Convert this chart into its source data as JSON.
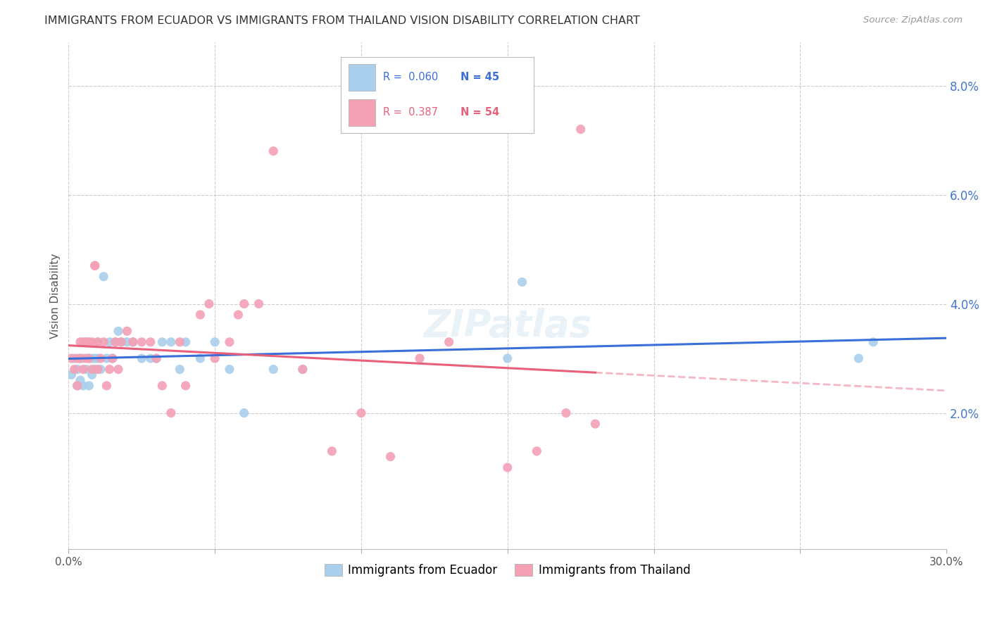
{
  "title": "IMMIGRANTS FROM ECUADOR VS IMMIGRANTS FROM THAILAND VISION DISABILITY CORRELATION CHART",
  "source": "Source: ZipAtlas.com",
  "ylabel": "Vision Disability",
  "xlim": [
    0.0,
    0.3
  ],
  "ylim": [
    -0.005,
    0.088
  ],
  "xticks": [
    0.0,
    0.05,
    0.1,
    0.15,
    0.2,
    0.25,
    0.3
  ],
  "xtick_labels": [
    "0.0%",
    "",
    "",
    "",
    "",
    "",
    "30.0%"
  ],
  "yticks_right": [
    0.02,
    0.04,
    0.06,
    0.08
  ],
  "ytick_labels_right": [
    "2.0%",
    "4.0%",
    "6.0%",
    "8.0%"
  ],
  "ecuador_color": "#aacfed",
  "thailand_color": "#f4a0b5",
  "ecuador_line_color": "#3a6fd8",
  "thailand_line_color": "#e8607a",
  "ecuador_R": 0.06,
  "ecuador_N": 45,
  "thailand_R": 0.387,
  "thailand_N": 54,
  "ecuador_x": [
    0.001,
    0.002,
    0.003,
    0.003,
    0.004,
    0.004,
    0.005,
    0.005,
    0.006,
    0.006,
    0.007,
    0.007,
    0.008,
    0.008,
    0.009,
    0.009,
    0.01,
    0.01,
    0.011,
    0.012,
    0.013,
    0.014,
    0.015,
    0.016,
    0.017,
    0.018,
    0.02,
    0.022,
    0.025,
    0.028,
    0.03,
    0.032,
    0.035,
    0.038,
    0.04,
    0.045,
    0.05,
    0.055,
    0.06,
    0.07,
    0.08,
    0.15,
    0.155,
    0.27,
    0.275
  ],
  "ecuador_y": [
    0.027,
    0.03,
    0.025,
    0.028,
    0.026,
    0.03,
    0.025,
    0.03,
    0.028,
    0.033,
    0.03,
    0.025,
    0.027,
    0.03,
    0.028,
    0.03,
    0.033,
    0.03,
    0.028,
    0.045,
    0.03,
    0.033,
    0.03,
    0.033,
    0.035,
    0.033,
    0.033,
    0.033,
    0.03,
    0.03,
    0.03,
    0.033,
    0.033,
    0.028,
    0.033,
    0.03,
    0.033,
    0.028,
    0.02,
    0.028,
    0.028,
    0.03,
    0.044,
    0.03,
    0.033
  ],
  "thailand_x": [
    0.001,
    0.002,
    0.003,
    0.003,
    0.004,
    0.004,
    0.005,
    0.005,
    0.006,
    0.006,
    0.007,
    0.007,
    0.008,
    0.008,
    0.009,
    0.009,
    0.01,
    0.01,
    0.011,
    0.012,
    0.013,
    0.014,
    0.015,
    0.016,
    0.017,
    0.018,
    0.02,
    0.022,
    0.025,
    0.028,
    0.03,
    0.032,
    0.035,
    0.038,
    0.04,
    0.045,
    0.048,
    0.05,
    0.055,
    0.058,
    0.06,
    0.065,
    0.07,
    0.08,
    0.09,
    0.1,
    0.11,
    0.12,
    0.13,
    0.15,
    0.16,
    0.17,
    0.175,
    0.18
  ],
  "thailand_y": [
    0.03,
    0.028,
    0.025,
    0.03,
    0.03,
    0.033,
    0.028,
    0.033,
    0.03,
    0.033,
    0.033,
    0.03,
    0.028,
    0.033,
    0.047,
    0.047,
    0.033,
    0.028,
    0.03,
    0.033,
    0.025,
    0.028,
    0.03,
    0.033,
    0.028,
    0.033,
    0.035,
    0.033,
    0.033,
    0.033,
    0.03,
    0.025,
    0.02,
    0.033,
    0.025,
    0.038,
    0.04,
    0.03,
    0.033,
    0.038,
    0.04,
    0.04,
    0.068,
    0.028,
    0.013,
    0.02,
    0.012,
    0.03,
    0.033,
    0.01,
    0.013,
    0.02,
    0.072,
    0.018
  ],
  "background_color": "#ffffff",
  "grid_color": "#cccccc",
  "title_fontsize": 11.5,
  "axis_label_fontsize": 11,
  "tick_fontsize": 11,
  "legend_fontsize": 12
}
